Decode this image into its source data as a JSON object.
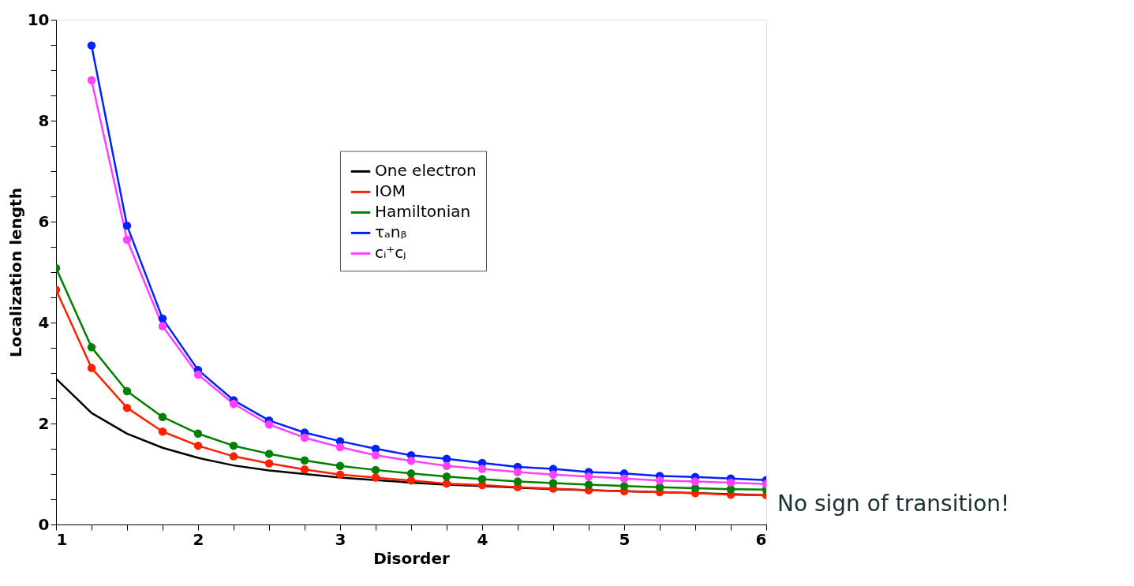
{
  "chart_data": {
    "type": "line",
    "xlabel": "Disorder",
    "ylabel": "Localization length",
    "x": [
      1,
      1.25,
      1.5,
      1.75,
      2,
      2.25,
      2.5,
      2.75,
      3,
      3.25,
      3.5,
      3.75,
      4,
      4.25,
      4.5,
      4.75,
      5,
      5.25,
      5.5,
      5.75,
      6
    ],
    "series": [
      {
        "name": "One electron",
        "color": "#000000",
        "marker": "none",
        "values": [
          2.89,
          2.21,
          1.8,
          1.52,
          1.32,
          1.17,
          1.07,
          1.0,
          0.93,
          0.88,
          0.83,
          0.79,
          0.76,
          0.73,
          0.7,
          0.68,
          0.66,
          0.64,
          0.62,
          0.6,
          0.58
        ]
      },
      {
        "name": "IOM",
        "color": "#ff2000",
        "marker": "circle",
        "values": [
          4.65,
          3.1,
          2.31,
          1.84,
          1.56,
          1.35,
          1.21,
          1.09,
          0.99,
          0.93,
          0.87,
          0.81,
          0.78,
          0.74,
          0.71,
          0.68,
          0.66,
          0.64,
          0.62,
          0.59,
          0.58
        ]
      },
      {
        "name": "Hamiltonian",
        "color": "#008000",
        "marker": "circle",
        "values": [
          5.08,
          3.51,
          2.64,
          2.13,
          1.8,
          1.56,
          1.4,
          1.27,
          1.16,
          1.08,
          1.01,
          0.95,
          0.9,
          0.85,
          0.82,
          0.79,
          0.76,
          0.74,
          0.72,
          0.7,
          0.69
        ]
      },
      {
        "name": "τₐnᵦ",
        "color": "#0020ff",
        "marker": "circle",
        "values": [
          null,
          9.49,
          5.92,
          4.08,
          3.06,
          2.46,
          2.06,
          1.82,
          1.65,
          1.5,
          1.37,
          1.3,
          1.22,
          1.14,
          1.1,
          1.04,
          1.01,
          0.96,
          0.94,
          0.91,
          0.88
        ]
      },
      {
        "name": "cᵢ⁺cⱼ",
        "color": "#ff40ff",
        "marker": "circle",
        "values": [
          null,
          8.8,
          5.64,
          3.93,
          2.97,
          2.39,
          1.98,
          1.72,
          1.53,
          1.37,
          1.26,
          1.16,
          1.1,
          1.04,
          0.99,
          0.95,
          0.91,
          0.87,
          0.85,
          0.83,
          0.8
        ]
      }
    ],
    "xlim": [
      1,
      6
    ],
    "xticks": [
      1,
      {
        "value": 1.25,
        "label": null
      },
      {
        "value": 1.5,
        "label": null
      },
      {
        "value": 1.75,
        "label": null
      },
      2,
      {
        "value": 2.25,
        "label": null
      },
      {
        "value": 2.5,
        "label": null
      },
      {
        "value": 2.75,
        "label": null
      },
      3,
      {
        "value": 3.25,
        "label": null
      },
      {
        "value": 3.5,
        "label": null
      },
      {
        "value": 3.75,
        "label": null
      },
      4,
      {
        "value": 4.25,
        "label": null
      },
      {
        "value": 4.5,
        "label": null
      },
      {
        "value": 4.75,
        "label": null
      },
      5,
      {
        "value": 5.25,
        "label": null
      },
      {
        "value": 5.5,
        "label": null
      },
      {
        "value": 5.75,
        "label": null
      },
      6
    ],
    "ylim": [
      0,
      10
    ],
    "yticks": [
      0,
      {
        "value": 0.5,
        "label": null
      },
      {
        "value": 1,
        "label": null
      },
      {
        "value": 1.5,
        "label": null
      },
      2,
      {
        "value": 2.5,
        "label": null
      },
      {
        "value": 3,
        "label": null
      },
      {
        "value": 3.5,
        "label": null
      },
      4,
      {
        "value": 4.5,
        "label": null
      },
      {
        "value": 5,
        "label": null
      },
      {
        "value": 5.5,
        "label": null
      },
      6,
      {
        "value": 6.5,
        "label": null
      },
      {
        "value": 7,
        "label": null
      },
      {
        "value": 7.5,
        "label": null
      },
      8,
      {
        "value": 8.5,
        "label": null
      },
      {
        "value": 9,
        "label": null
      },
      {
        "value": 9.5,
        "label": null
      },
      10
    ],
    "grid": false,
    "legend": "top",
    "annotations": [
      "No sign of transition!"
    ]
  }
}
